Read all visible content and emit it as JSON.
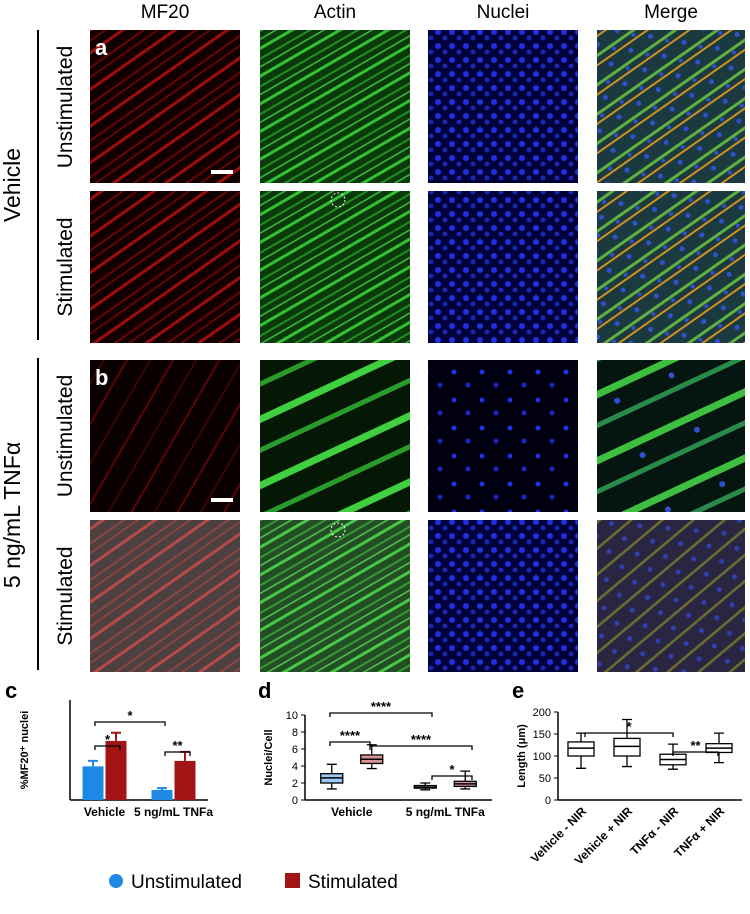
{
  "panels": {
    "columns": [
      "MF20",
      "Actin",
      "Nuclei",
      "Merge"
    ],
    "groups": [
      {
        "label": "Vehicle",
        "letter": "a",
        "rows": [
          "Unstimulated",
          "Stimulated"
        ]
      },
      {
        "label": "5 ng/mL TNFα",
        "letter": "b",
        "rows": [
          "Unstimulated",
          "Stimulated"
        ]
      }
    ]
  },
  "chart_data": [
    {
      "type": "bar",
      "panel": "c",
      "ylabel": "%MF20⁺ nuclei",
      "categories": [
        "Vehicle",
        "5 ng/mL TNFa"
      ],
      "series": [
        {
          "name": "Unstimulated",
          "color": "#1e88e5",
          "values": [
            18.5,
            5.5
          ],
          "errors": [
            3,
            1
          ]
        },
        {
          "name": "Stimulated",
          "color": "#a31515",
          "values": [
            32.5,
            21.5
          ],
          "errors": [
            4.5,
            5
          ]
        }
      ],
      "ylim": [
        0,
        55
      ],
      "annotations": [
        "*",
        "*",
        "**"
      ]
    },
    {
      "type": "box",
      "panel": "d",
      "ylabel": "Nuclei/Cell",
      "categories": [
        "Vehicle",
        "5 ng/mL TNFa"
      ],
      "series": [
        {
          "color": "#1e88e5",
          "boxes": [
            {
              "min": 1.3,
              "q1": 2.0,
              "median": 2.6,
              "q3": 3.1,
              "max": 4.2
            },
            {
              "min": 1.2,
              "q1": 1.4,
              "median": 1.5,
              "q3": 1.7,
              "max": 2.0
            }
          ]
        },
        {
          "color": "#a31515",
          "boxes": [
            {
              "min": 3.7,
              "q1": 4.3,
              "median": 4.8,
              "q3": 5.3,
              "max": 6.5
            },
            {
              "min": 1.3,
              "q1": 1.6,
              "median": 1.9,
              "q3": 2.2,
              "max": 3.4
            }
          ]
        }
      ],
      "ylim": [
        0,
        10
      ],
      "yticks": [
        0,
        2,
        4,
        6,
        8,
        10
      ],
      "annotations": [
        "****",
        "****",
        "****",
        "*"
      ]
    },
    {
      "type": "box",
      "panel": "e",
      "ylabel": "Length (μm)",
      "categories": [
        "Vehicle - NIR",
        "Vehicle + NIR",
        "TNFα - NIR",
        "TNFα + NIR"
      ],
      "series": [
        {
          "color": "#ffffff",
          "boxes": [
            {
              "min": 72,
              "q1": 100,
              "median": 118,
              "q3": 132,
              "max": 152
            },
            {
              "min": 76,
              "q1": 100,
              "median": 122,
              "q3": 140,
              "max": 183
            },
            {
              "min": 70,
              "q1": 80,
              "median": 92,
              "q3": 104,
              "max": 127
            },
            {
              "min": 85,
              "q1": 108,
              "median": 118,
              "q3": 128,
              "max": 152
            }
          ]
        }
      ],
      "ylim": [
        0,
        200
      ],
      "yticks": [
        0,
        50,
        100,
        150,
        200
      ],
      "annotations": [
        "*",
        "**"
      ]
    }
  ]
}
